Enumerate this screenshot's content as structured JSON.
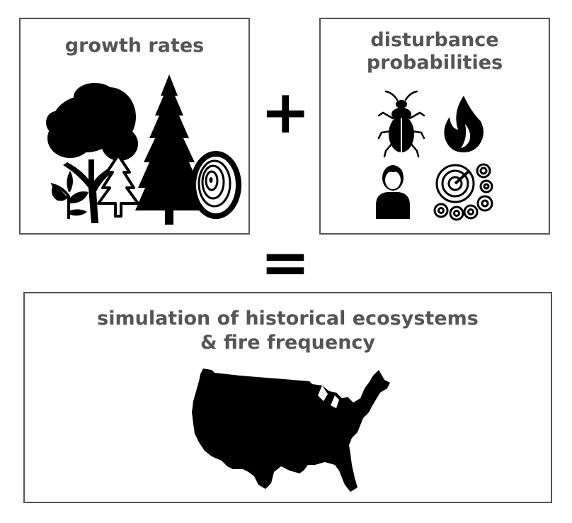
{
  "panels": {
    "growth": {
      "title": "growth rates",
      "icons": [
        "deciduous-tree-icon",
        "sapling-icon",
        "small-conifer-icon",
        "conifer-tree-icon",
        "tree-rings-icon"
      ]
    },
    "disturbance": {
      "title_line1": "disturbance",
      "title_line2": "probabilities",
      "icons": [
        "beetle-icon",
        "fire-icon",
        "person-icon",
        "tree-stumps-icon"
      ]
    },
    "simulation": {
      "title_line1": "simulation of historical ecosystems",
      "title_line2": "& fire frequency",
      "icons": [
        "usa-map-icon"
      ]
    }
  },
  "operators": {
    "plus": "+",
    "equals": "="
  },
  "colors": {
    "border": "#555555",
    "text": "#555555",
    "icon": "#000000"
  }
}
